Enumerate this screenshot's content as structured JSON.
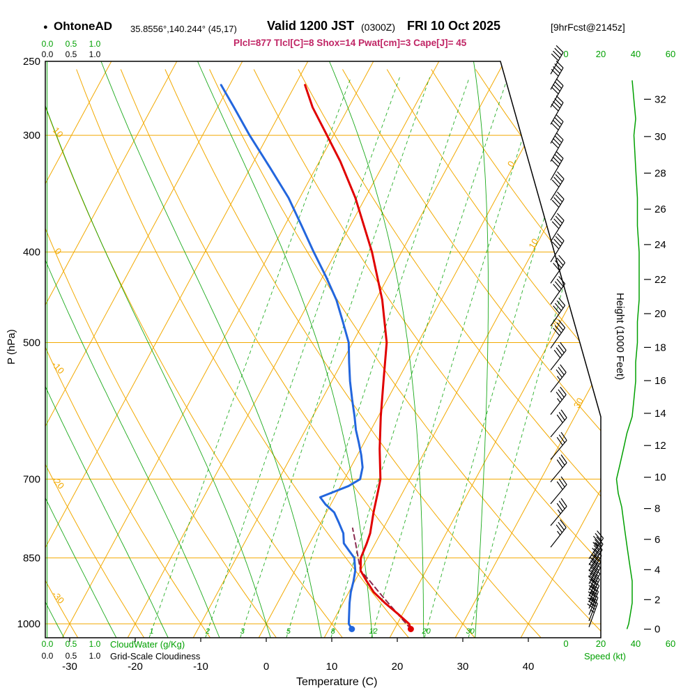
{
  "header": {
    "station": "OhtoneAD",
    "coords": "35.8556°,140.244° (45,17)",
    "valid_label": "Valid 1200 JST",
    "valid_z": "(0300Z)",
    "valid_date": "FRI 10 Oct 2025",
    "fcst": "[9hrFcst@2145z]",
    "indices_text": "Plcl=877 Tlcl[C]=8 Shox=14 Pwat[cm]=3 Cape[J]= 45"
  },
  "axes": {
    "pressure_label": "P (hPa)",
    "temperature_label": "Temperature (C)",
    "height_label": "Height (1000 Feet)",
    "speed_label": "Speed (kt)",
    "cloudwater_label": "CloudWater (g/Kg)",
    "cloudiness_label": "Grid-Scale Cloudiness"
  },
  "chart_data": {
    "type": "skewt_logp_sounding",
    "station": "OhtoneAD",
    "indices": {
      "Plcl": 877,
      "Tlcl_C": 8,
      "Shox": 14,
      "Pwat_cm": 3,
      "Cape_J": 45
    },
    "pressure_ticks_hPa": [
      250,
      300,
      400,
      500,
      700,
      850,
      1000
    ],
    "temperature_ticks_C": [
      -30,
      -20,
      -10,
      0,
      10,
      20,
      30,
      40
    ],
    "height_ticks_1000ft": [
      0,
      2,
      4,
      6,
      8,
      10,
      12,
      14,
      16,
      18,
      20,
      22,
      24,
      26,
      28,
      30,
      32
    ],
    "speed_ticks_kt": [
      0,
      20,
      40,
      60
    ],
    "cloud_scale_ticks": [
      "0.0",
      "0.5",
      "1.0"
    ],
    "isotherm_label_values_C": [
      0,
      10,
      20,
      30
    ],
    "dry_adiabat_label_values_C": [
      10,
      0,
      -10,
      -20,
      -30
    ],
    "mixing_ratio_labels_gkg": [
      1,
      2,
      3,
      5,
      8,
      12,
      20,
      30
    ],
    "temperature_profile_pT": [
      [
        1013,
        22.5
      ],
      [
        1000,
        21.8
      ],
      [
        975,
        19.2
      ],
      [
        950,
        16.4
      ],
      [
        925,
        13.8
      ],
      [
        900,
        11.8
      ],
      [
        877,
        10.0
      ],
      [
        850,
        9.0
      ],
      [
        820,
        8.7
      ],
      [
        800,
        8.4
      ],
      [
        760,
        7.2
      ],
      [
        720,
        6.1
      ],
      [
        700,
        5.5
      ],
      [
        650,
        2.9
      ],
      [
        600,
        0.4
      ],
      [
        550,
        -2.1
      ],
      [
        500,
        -4.8
      ],
      [
        450,
        -9.0
      ],
      [
        400,
        -14.5
      ],
      [
        350,
        -21.5
      ],
      [
        320,
        -26.8
      ],
      [
        300,
        -31.0
      ],
      [
        280,
        -35.5
      ],
      [
        265,
        -38.5
      ]
    ],
    "dewpoint_profile_pT": [
      [
        1013,
        13.5
      ],
      [
        1000,
        12.6
      ],
      [
        975,
        11.8
      ],
      [
        950,
        11.0
      ],
      [
        925,
        10.3
      ],
      [
        900,
        9.8
      ],
      [
        877,
        9.2
      ],
      [
        850,
        8.0
      ],
      [
        835,
        6.6
      ],
      [
        820,
        5.2
      ],
      [
        800,
        4.3
      ],
      [
        780,
        2.8
      ],
      [
        760,
        1.2
      ],
      [
        745,
        -0.8
      ],
      [
        732,
        -2.2
      ],
      [
        722,
        -0.5
      ],
      [
        712,
        1.2
      ],
      [
        700,
        2.4
      ],
      [
        680,
        1.8
      ],
      [
        660,
        0.6
      ],
      [
        640,
        -0.8
      ],
      [
        620,
        -2.3
      ],
      [
        600,
        -3.6
      ],
      [
        575,
        -5.4
      ],
      [
        550,
        -7.2
      ],
      [
        525,
        -8.9
      ],
      [
        500,
        -10.6
      ],
      [
        475,
        -13.2
      ],
      [
        450,
        -16.0
      ],
      [
        425,
        -19.5
      ],
      [
        400,
        -23.4
      ],
      [
        375,
        -27.4
      ],
      [
        350,
        -31.7
      ],
      [
        325,
        -37.0
      ],
      [
        300,
        -42.8
      ],
      [
        280,
        -47.5
      ],
      [
        265,
        -51.3
      ]
    ],
    "parcel_path_pT": [
      [
        1013,
        22.5
      ],
      [
        980,
        19.6
      ],
      [
        950,
        16.9
      ],
      [
        925,
        14.6
      ],
      [
        900,
        12.3
      ],
      [
        877,
        10.0
      ],
      [
        850,
        8.6
      ],
      [
        820,
        7.0
      ],
      [
        790,
        5.3
      ]
    ],
    "wind_barbs_p_kt_dir": [
      [
        258,
        38,
        30
      ],
      [
        268,
        40,
        30
      ],
      [
        280,
        40,
        30
      ],
      [
        292,
        41,
        30
      ],
      [
        306,
        41,
        30
      ],
      [
        320,
        42,
        30
      ],
      [
        335,
        42,
        30
      ],
      [
        352,
        42,
        32
      ],
      [
        370,
        42,
        32
      ],
      [
        390,
        41,
        32
      ],
      [
        410,
        41,
        32
      ],
      [
        432,
        42,
        35
      ],
      [
        455,
        41,
        35
      ],
      [
        480,
        40,
        35
      ],
      [
        507,
        39,
        35
      ],
      [
        535,
        38,
        38
      ],
      [
        565,
        35,
        38
      ],
      [
        597,
        33,
        38
      ],
      [
        631,
        30,
        40
      ],
      [
        667,
        30,
        40
      ],
      [
        705,
        29,
        40
      ],
      [
        744,
        31,
        40
      ],
      [
        785,
        33,
        40
      ],
      [
        828,
        34,
        38
      ],
      [
        852,
        36,
        35
      ],
      [
        865,
        37,
        34
      ],
      [
        878,
        37,
        32
      ],
      [
        892,
        38,
        30
      ],
      [
        906,
        38,
        28
      ],
      [
        920,
        38,
        27
      ],
      [
        934,
        38,
        26
      ],
      [
        948,
        37,
        25
      ],
      [
        963,
        37,
        24
      ],
      [
        978,
        36,
        22
      ],
      [
        993,
        36,
        21
      ],
      [
        1008,
        35,
        20
      ]
    ],
    "wind_speed_profile_p_kt": [
      [
        1013,
        35
      ],
      [
        1000,
        36
      ],
      [
        975,
        37
      ],
      [
        950,
        38
      ],
      [
        925,
        38
      ],
      [
        900,
        38
      ],
      [
        875,
        37
      ],
      [
        850,
        36
      ],
      [
        825,
        35
      ],
      [
        800,
        34
      ],
      [
        775,
        33
      ],
      [
        750,
        32
      ],
      [
        725,
        30
      ],
      [
        700,
        29
      ],
      [
        675,
        31
      ],
      [
        650,
        33
      ],
      [
        625,
        35
      ],
      [
        600,
        38
      ],
      [
        575,
        39
      ],
      [
        550,
        40
      ],
      [
        525,
        40
      ],
      [
        500,
        41
      ],
      [
        475,
        41
      ],
      [
        450,
        42
      ],
      [
        425,
        42
      ],
      [
        400,
        42
      ],
      [
        375,
        41
      ],
      [
        350,
        41
      ],
      [
        325,
        40
      ],
      [
        300,
        39
      ],
      [
        288,
        40
      ],
      [
        275,
        39
      ],
      [
        262,
        38
      ]
    ],
    "colors": {
      "grid_orange": "#F2A900",
      "green": "#00A000",
      "temperature_red": "#E00000",
      "dewpoint_blue": "#2366DD",
      "parcel_maroon": "#8A2B50",
      "indices_color": "#C02565",
      "frame_black": "#000000"
    }
  }
}
